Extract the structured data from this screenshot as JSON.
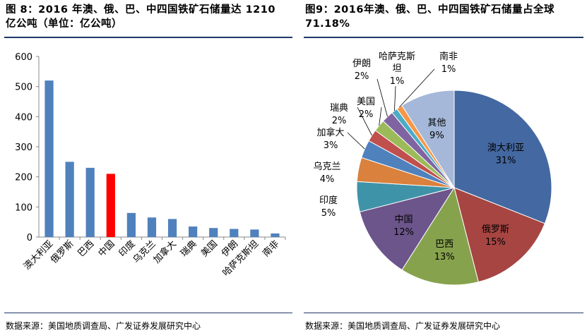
{
  "fig8": {
    "title_line1": "图 8：2016 年澳、俄、巴、中四国铁矿石储量达 1210",
    "title_line2": "亿公吨（单位：亿公吨）",
    "source": "数据来源：美国地质调查局、广发证券发展研究中心"
  },
  "fig9": {
    "title_line1": "图9：2016年澳、俄、巴、中四国铁矿石储量占全球",
    "title_line2": "71.18%",
    "source": "数据来源：美国地质调查局、广发证券发展研究中心"
  },
  "colors": {
    "bar_default": "#4f81bd",
    "bar_highlight": "#ff0000",
    "title_rule": "#1f3864"
  },
  "chart_data": [
    {
      "type": "bar",
      "categories": [
        "澳大利亚",
        "俄罗斯",
        "巴西",
        "中国",
        "印度",
        "乌克兰",
        "加拿大",
        "瑞典",
        "美国",
        "伊朗",
        "哈萨克斯坦",
        "南非"
      ],
      "values": [
        520,
        250,
        230,
        210,
        80,
        65,
        60,
        35,
        30,
        27,
        25,
        12
      ],
      "highlight": "中国",
      "ylim": [
        0,
        600
      ],
      "yticks": [
        0,
        100,
        200,
        300,
        400,
        500,
        600
      ],
      "grid": false
    },
    {
      "type": "pie",
      "slices": [
        {
          "label": "澳大利亚",
          "value": 31,
          "text": "31%",
          "color": "#4468a1"
        },
        {
          "label": "俄罗斯",
          "value": 15,
          "text": "15%",
          "color": "#a64542"
        },
        {
          "label": "巴西",
          "value": 13,
          "text": "13%",
          "color": "#87a24d"
        },
        {
          "label": "中国",
          "value": 12,
          "text": "12%",
          "color": "#6c558a"
        },
        {
          "label": "印度",
          "value": 5,
          "text": "5%",
          "color": "#3f93a8"
        },
        {
          "label": "乌克兰",
          "value": 4,
          "text": "4%",
          "color": "#d9813d"
        },
        {
          "label": "加拿大",
          "value": 3,
          "text": "3%",
          "color": "#4f81bd"
        },
        {
          "label": "瑞典",
          "value": 2,
          "text": "2%",
          "color": "#c0504d"
        },
        {
          "label": "美国",
          "value": 2,
          "text": "2%",
          "color": "#9bbb59"
        },
        {
          "label": "伊朗",
          "value": 2,
          "text": "2%",
          "color": "#8064a2"
        },
        {
          "label": "哈萨克斯坦",
          "value": 1,
          "text": "1%",
          "color": "#4bacc6"
        },
        {
          "label": "南非",
          "value": 1,
          "text": "1%",
          "color": "#f79646"
        },
        {
          "label": "其他",
          "value": 9,
          "text": "9%",
          "color": "#a5b8d9"
        }
      ]
    }
  ]
}
